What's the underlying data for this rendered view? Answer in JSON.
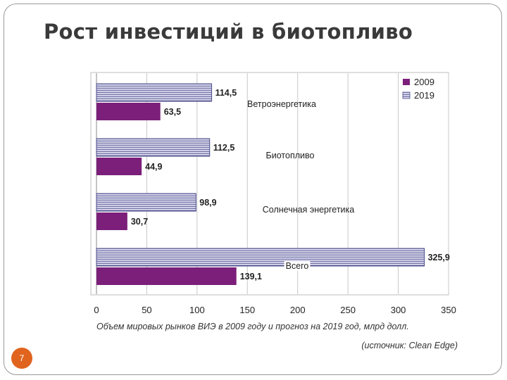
{
  "slide": {
    "title": "Рост инвестиций в биотопливо",
    "page_number": "7"
  },
  "colors": {
    "series_2009": "#7b1f7a",
    "series_2019_fill": "#dcdcf0",
    "series_2019_stripe": "#4a4a8a",
    "grid": "#c8c8c8",
    "page_badge": "#e0641e"
  },
  "chart_data": {
    "type": "bar",
    "orientation": "horizontal",
    "categories": [
      "Ветроэнергетика",
      "Биотопливо",
      "Солнечная энергетика",
      "Всего"
    ],
    "series": [
      {
        "name": "2009",
        "values": [
          63.5,
          44.9,
          30.7,
          139.1
        ],
        "labels": [
          "63,5",
          "44,9",
          "30,7",
          "139,1"
        ]
      },
      {
        "name": "2019",
        "values": [
          114.5,
          112.5,
          98.9,
          325.9
        ],
        "labels": [
          "114,5",
          "112,5",
          "98,9",
          "325,9"
        ]
      }
    ],
    "xlim": [
      0,
      350
    ],
    "xticks": [
      "0",
      "50",
      "100",
      "150",
      "200",
      "250",
      "300",
      "350"
    ],
    "grid": true,
    "legend_position": "top-right",
    "caption": "Объем мировых рынков ВИЭ в 2009 году и прогноз на 2019 год, млрд долл.",
    "source": "(источник: Clean Edge)"
  }
}
